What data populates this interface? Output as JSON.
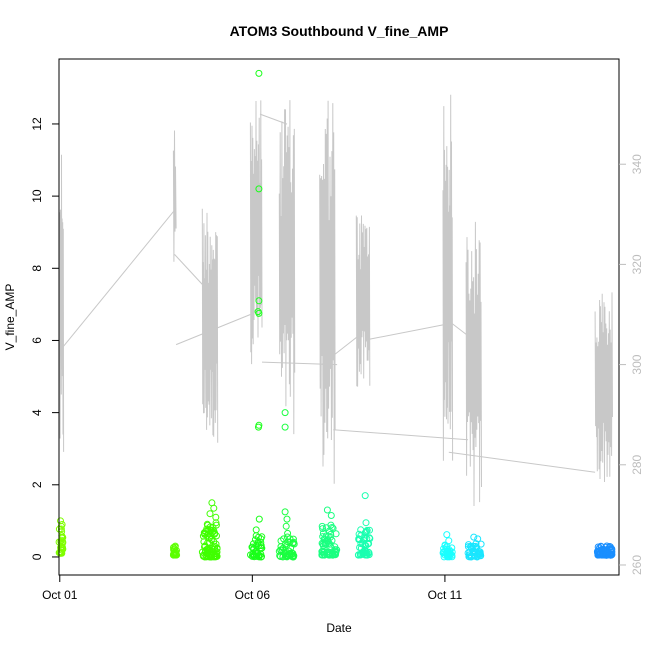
{
  "chart_data": {
    "type": "scatter",
    "title": "ATOM3 Southbound V_fine_AMP",
    "xlabel": "Date",
    "ylabel": "V_fine_AMP",
    "y2label": "",
    "x_unit": "days (Oct 1 = 1)",
    "xlim": [
      0.98,
      15.52
    ],
    "ylim": [
      -0.5,
      13.8
    ],
    "y2lim": [
      258.0,
      361.0
    ],
    "x_ticks": [
      {
        "value": 1,
        "label": "Oct 01"
      },
      {
        "value": 6,
        "label": "Oct 06"
      },
      {
        "value": 11,
        "label": "Oct 11"
      }
    ],
    "y_ticks": [
      0,
      2,
      4,
      6,
      8,
      10,
      12
    ],
    "y2_ticks": [
      260,
      280,
      300,
      320,
      340
    ],
    "grid": false,
    "legend": "none",
    "colors": {
      "overlay_line": "#c8c8c8",
      "right_axis": "#bdbdbd"
    },
    "scatter_clusters": [
      {
        "x_start": 0.98,
        "x_end": 1.08,
        "n": 30,
        "y_range": [
          0.1,
          0.8
        ],
        "color": "#80ff00",
        "extra": [
          [
            1.02,
            1.0
          ],
          [
            1.06,
            0.9
          ],
          [
            1.04,
            0.85
          ]
        ]
      },
      {
        "x_start": 3.95,
        "x_end": 4.05,
        "n": 22,
        "y_range": [
          0.05,
          0.35
        ],
        "color": "#5cff00"
      },
      {
        "x_start": 4.7,
        "x_end": 5.1,
        "n": 80,
        "y_range": [
          0.0,
          0.95
        ],
        "color": "#40ff00",
        "extra": [
          [
            4.95,
            1.5
          ],
          [
            5.0,
            1.35
          ],
          [
            4.9,
            1.2
          ],
          [
            5.05,
            1.1
          ]
        ]
      },
      {
        "x_start": 5.95,
        "x_end": 6.25,
        "n": 40,
        "y_range": [
          0.0,
          0.6
        ],
        "color": "#1aff1a",
        "extra": [
          [
            6.17,
            13.4
          ],
          [
            6.17,
            10.2
          ],
          [
            6.17,
            7.1
          ],
          [
            6.15,
            6.8
          ],
          [
            6.17,
            6.75
          ],
          [
            6.17,
            3.65
          ],
          [
            6.16,
            3.6
          ],
          [
            6.18,
            1.05
          ],
          [
            6.1,
            0.75
          ]
        ]
      },
      {
        "x_start": 6.7,
        "x_end": 7.1,
        "n": 45,
        "y_range": [
          0.0,
          0.7
        ],
        "color": "#1aff40",
        "extra": [
          [
            6.85,
            4.0
          ],
          [
            6.85,
            3.6
          ],
          [
            6.85,
            1.25
          ],
          [
            6.9,
            1.05
          ],
          [
            6.88,
            0.85
          ]
        ]
      },
      {
        "x_start": 7.8,
        "x_end": 8.2,
        "n": 60,
        "y_range": [
          0.05,
          1.0
        ],
        "color": "#1aff80",
        "extra": [
          [
            7.95,
            1.3
          ],
          [
            8.05,
            1.15
          ]
        ]
      },
      {
        "x_start": 8.75,
        "x_end": 9.05,
        "n": 45,
        "y_range": [
          0.05,
          0.8
        ],
        "color": "#1affb0",
        "extra": [
          [
            8.93,
            1.7
          ],
          [
            8.95,
            0.95
          ]
        ]
      },
      {
        "x_start": 10.95,
        "x_end": 11.2,
        "n": 35,
        "y_range": [
          0.0,
          0.35
        ],
        "color": "#1affff",
        "extra": [
          [
            11.05,
            0.62
          ],
          [
            11.1,
            0.45
          ]
        ]
      },
      {
        "x_start": 11.6,
        "x_end": 11.95,
        "n": 40,
        "y_range": [
          0.0,
          0.4
        ],
        "color": "#1ae6ff",
        "extra": [
          [
            11.75,
            0.55
          ],
          [
            11.85,
            0.5
          ]
        ]
      },
      {
        "x_start": 14.95,
        "x_end": 15.35,
        "n": 70,
        "y_range": [
          0.05,
          0.32
        ],
        "color": "#1a8fff"
      }
    ],
    "overlay_bursts": [
      {
        "x_start": 1.0,
        "x_end": 1.1,
        "y2_range": [
          278,
          346
        ],
        "n": 14
      },
      {
        "x_start": 3.95,
        "x_end": 4.02,
        "y2_range": [
          318,
          349
        ],
        "n": 6
      },
      {
        "x_start": 4.7,
        "x_end": 5.1,
        "y2_range": [
          284,
          333
        ],
        "n": 40
      },
      {
        "x_start": 5.95,
        "x_end": 6.25,
        "y2_range": [
          300,
          353
        ],
        "n": 30
      },
      {
        "x_start": 6.7,
        "x_end": 7.1,
        "y2_range": [
          286,
          353
        ],
        "n": 36
      },
      {
        "x_start": 7.75,
        "x_end": 8.15,
        "y2_range": [
          276,
          356
        ],
        "n": 34
      },
      {
        "x_start": 8.7,
        "x_end": 9.05,
        "y2_range": [
          294,
          331
        ],
        "n": 32
      },
      {
        "x_start": 10.95,
        "x_end": 11.2,
        "y2_range": [
          280,
          355
        ],
        "n": 26
      },
      {
        "x_start": 11.55,
        "x_end": 11.95,
        "y2_range": [
          270,
          329
        ],
        "n": 34
      },
      {
        "x_start": 14.9,
        "x_end": 15.35,
        "y2_range": [
          276,
          315
        ],
        "n": 40
      }
    ],
    "overlay_connectors": [
      [
        1.08,
        303.5,
        4.0,
        331
      ],
      [
        3.98,
        322,
        4.7,
        316
      ],
      [
        4.02,
        304,
        5.95,
        310
      ],
      [
        6.2,
        350,
        6.9,
        348
      ],
      [
        6.25,
        300.5,
        8.2,
        300
      ],
      [
        6.9,
        310,
        6.95,
        310
      ],
      [
        8.1,
        287,
        11.6,
        285
      ],
      [
        9.0,
        305,
        11.0,
        308
      ],
      [
        11.05,
        309,
        11.9,
        304
      ],
      [
        11.1,
        282.5,
        14.9,
        278.5
      ],
      [
        7.8,
        300,
        8.8,
        306
      ]
    ]
  }
}
